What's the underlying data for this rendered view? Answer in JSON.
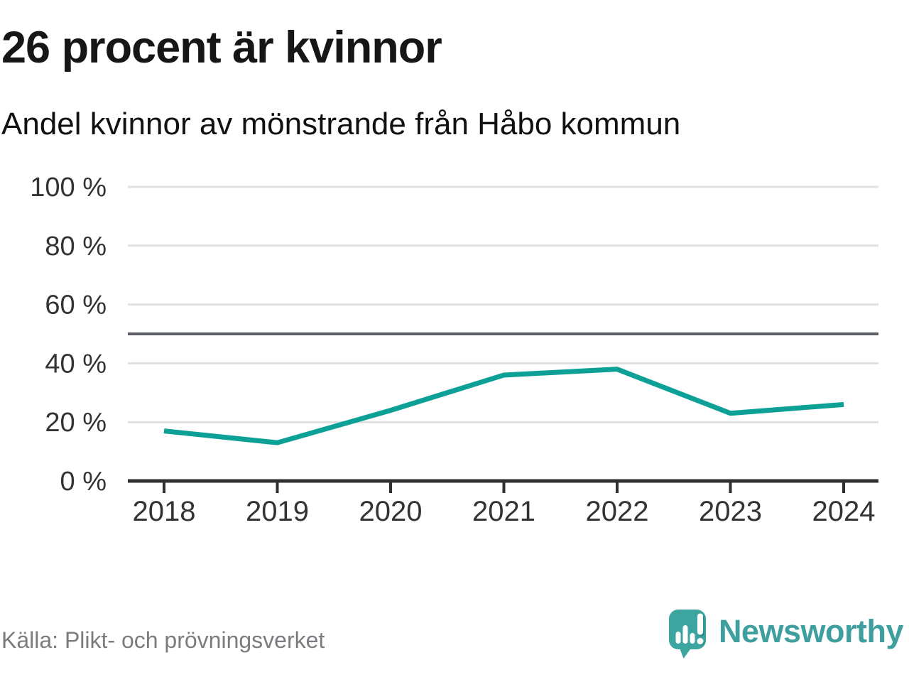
{
  "header": {
    "title": "26 procent är kvinnor",
    "subtitle": "Andel kvinnor av mönstrande från Håbo kommun"
  },
  "chart_data": {
    "type": "line",
    "title": "26 procent är kvinnor",
    "subtitle": "Andel kvinnor av mönstrande från Håbo kommun",
    "categories": [
      "2018",
      "2019",
      "2020",
      "2021",
      "2022",
      "2023",
      "2024"
    ],
    "series": [
      {
        "name": "Andel kvinnor av mönstrande",
        "values": [
          17,
          13,
          24,
          36,
          38,
          23,
          26
        ]
      }
    ],
    "unit": "%",
    "ylim": [
      0,
      100
    ],
    "yticks": [
      0,
      20,
      40,
      60,
      80,
      100
    ],
    "ytick_label_format": "{v} %",
    "reference_line": 50,
    "grid": true,
    "legend": "none",
    "line_color": "#0ca096"
  },
  "footer": {
    "source": "Källa: Plikt- och prövningsverket",
    "brand": "Newsworthy"
  },
  "colors": {
    "line": "#0ca096",
    "grid": "#e0e0e0",
    "reference": "#5a5d64",
    "axis": "#303030",
    "tick_text": "#333333",
    "title_text": "#161616",
    "muted_text": "#7c7b80",
    "brand_teal": "#3f9f9e",
    "logo_bubble": "#3da5a0",
    "logo_shadow": "#2e8e89"
  }
}
